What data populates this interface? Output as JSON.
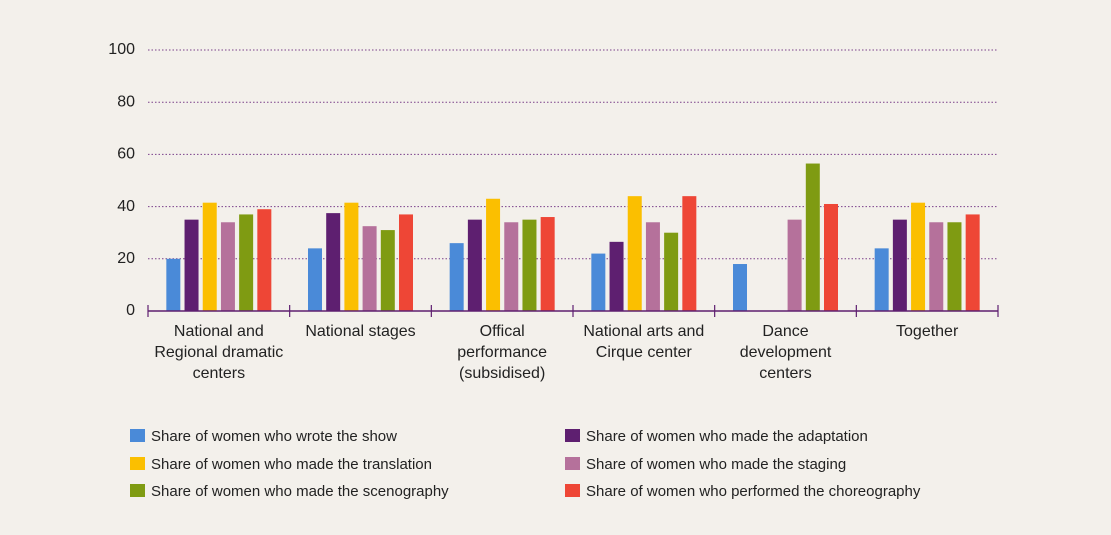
{
  "chart_data": {
    "type": "bar",
    "categories": [
      "National and Regional dramatic centers",
      "National stages",
      "Offical performance (subsidised)",
      "National arts and Cirque center",
      "Dance development centers",
      "Together"
    ],
    "series": [
      {
        "name": "Share of women who wrote the show",
        "color": "#4a8ad8",
        "values": [
          20,
          24,
          26,
          22,
          18,
          24
        ]
      },
      {
        "name": "Share of women who made the adaptation",
        "color": "#5e1f70",
        "values": [
          35,
          37.5,
          35,
          26.5,
          null,
          35
        ]
      },
      {
        "name": "Share of women who made the translation",
        "color": "#fbbf00",
        "values": [
          41.5,
          41.5,
          43,
          44,
          null,
          41.5
        ]
      },
      {
        "name": "Share of women who made the staging",
        "color": "#b5719b",
        "values": [
          34,
          32.5,
          34,
          34,
          35,
          34
        ]
      },
      {
        "name": "Share of women who made the scenography",
        "color": "#7f9b12",
        "values": [
          37,
          31,
          35,
          30,
          56.5,
          34
        ]
      },
      {
        "name": "Share of women who performed the choreography",
        "color": "#ee4636",
        "values": [
          39,
          37,
          36,
          44,
          41,
          37
        ]
      }
    ],
    "ylim": [
      0,
      100
    ],
    "yticks": [
      0,
      20,
      40,
      60,
      80,
      100
    ],
    "grid": true
  }
}
